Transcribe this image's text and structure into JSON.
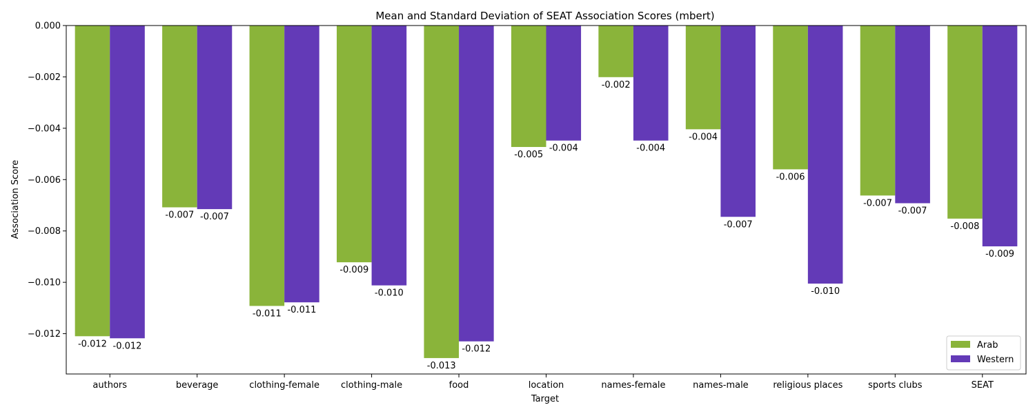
{
  "chart_data": {
    "type": "bar",
    "title": "Mean and Standard Deviation of SEAT Association Scores (mbert)",
    "xlabel": "Target",
    "ylabel": "Association Score",
    "categories": [
      "authors",
      "beverage",
      "clothing-female",
      "clothing-male",
      "food",
      "location",
      "names-female",
      "names-male",
      "religious places",
      "sports clubs",
      "SEAT"
    ],
    "series": [
      {
        "name": "Arab",
        "color": "#8ab43a",
        "values": [
          -0.0121,
          -0.00708,
          -0.01092,
          -0.00922,
          -0.01295,
          -0.00473,
          -0.00201,
          -0.00404,
          -0.0056,
          -0.00662,
          -0.00752
        ],
        "labels": [
          "-0.012",
          "-0.007",
          "-0.011",
          "-0.009",
          "-0.013",
          "-0.005",
          "-0.002",
          "-0.004",
          "-0.006",
          "-0.007",
          "-0.008"
        ]
      },
      {
        "name": "Western",
        "color": "#633ab7",
        "values": [
          -0.01218,
          -0.00715,
          -0.01078,
          -0.01012,
          -0.0123,
          -0.00448,
          -0.00448,
          -0.00745,
          -0.01005,
          -0.00692,
          -0.0086
        ],
        "labels": [
          "-0.012",
          "-0.007",
          "-0.011",
          "-0.010",
          "-0.012",
          "-0.004",
          "-0.004",
          "-0.007",
          "-0.010",
          "-0.007",
          "-0.009"
        ]
      }
    ],
    "ylim": [
      -0.01357,
      0.0
    ],
    "yticks": [
      0.0,
      -0.002,
      -0.004,
      -0.006,
      -0.008,
      -0.01,
      -0.012
    ],
    "ytick_labels": [
      "0.000",
      "−0.002",
      "−0.004",
      "−0.006",
      "−0.008",
      "−0.010",
      "−0.012"
    ],
    "grid": false,
    "legend_position": "bottom-right"
  }
}
